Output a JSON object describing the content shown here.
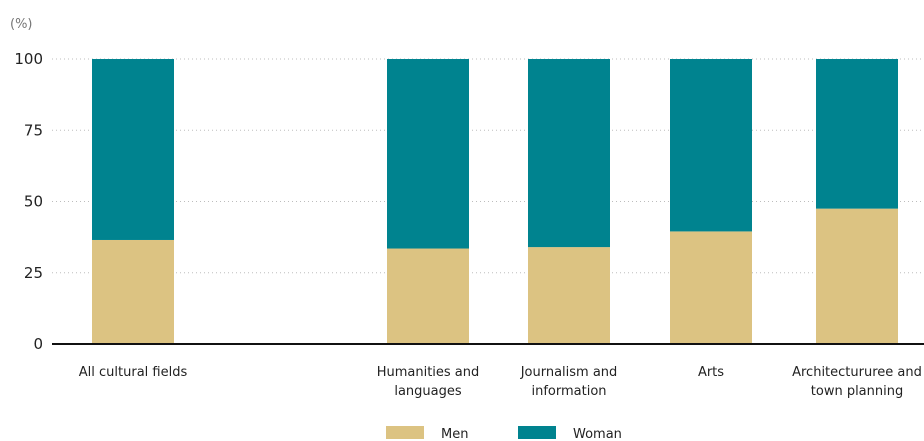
{
  "chart_data": {
    "type": "bar",
    "stacked": true,
    "unit_label": "(%)",
    "ylim": [
      0,
      100
    ],
    "yticks": [
      0,
      25,
      50,
      75,
      100
    ],
    "grid": true,
    "legend_position": "bottom-center",
    "categories": [
      [
        "All cultural fields"
      ],
      [
        "Humanities and",
        "languages"
      ],
      [
        "Journalism and",
        "information"
      ],
      [
        "Arts"
      ],
      [
        "Architectururee and",
        "town planning"
      ]
    ],
    "series": [
      {
        "name": "Men",
        "color": "#dcc382",
        "values": [
          36.5,
          33.5,
          34,
          39.5,
          47.5
        ]
      },
      {
        "name": "Woman",
        "color": "#00838f",
        "values": [
          63.5,
          66.5,
          66,
          60.5,
          52.5
        ]
      }
    ]
  }
}
